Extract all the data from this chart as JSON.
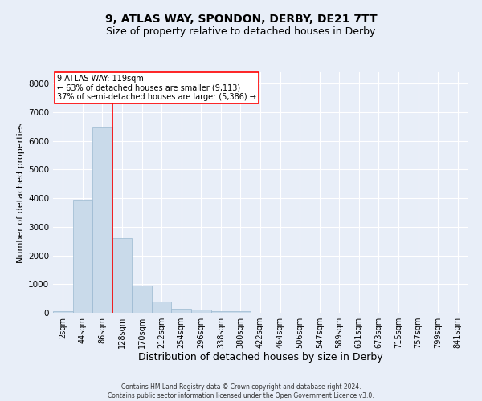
{
  "title1": "9, ATLAS WAY, SPONDON, DERBY, DE21 7TT",
  "title2": "Size of property relative to detached houses in Derby",
  "xlabel": "Distribution of detached houses by size in Derby",
  "ylabel": "Number of detached properties",
  "footnote": "Contains HM Land Registry data © Crown copyright and database right 2024.\nContains public sector information licensed under the Open Government Licence v3.0.",
  "bin_labels": [
    "2sqm",
    "44sqm",
    "86sqm",
    "128sqm",
    "170sqm",
    "212sqm",
    "254sqm",
    "296sqm",
    "338sqm",
    "380sqm",
    "422sqm",
    "464sqm",
    "506sqm",
    "547sqm",
    "589sqm",
    "631sqm",
    "673sqm",
    "715sqm",
    "757sqm",
    "799sqm",
    "841sqm"
  ],
  "bar_values": [
    50,
    3950,
    6500,
    2600,
    950,
    400,
    150,
    100,
    60,
    50,
    5,
    0,
    0,
    0,
    0,
    0,
    0,
    0,
    0,
    0,
    0
  ],
  "bar_color": "#c9daea",
  "bar_edge_color": "#9ab8d0",
  "vline_x_idx": 2,
  "vline_color": "red",
  "annotation_text": "9 ATLAS WAY: 119sqm\n← 63% of detached houses are smaller (9,113)\n37% of semi-detached houses are larger (5,386) →",
  "annotation_box_color": "white",
  "annotation_box_edge": "red",
  "ylim": [
    0,
    8400
  ],
  "yticks": [
    0,
    1000,
    2000,
    3000,
    4000,
    5000,
    6000,
    7000,
    8000
  ],
  "background_color": "#e8eef8",
  "plot_bg_color": "#e8eef8",
  "grid_color": "white",
  "title1_fontsize": 10,
  "title2_fontsize": 9,
  "xlabel_fontsize": 9,
  "ylabel_fontsize": 8,
  "annotation_fontsize": 7,
  "tick_fontsize": 7,
  "ytick_fontsize": 7.5,
  "footnote_fontsize": 5.5
}
